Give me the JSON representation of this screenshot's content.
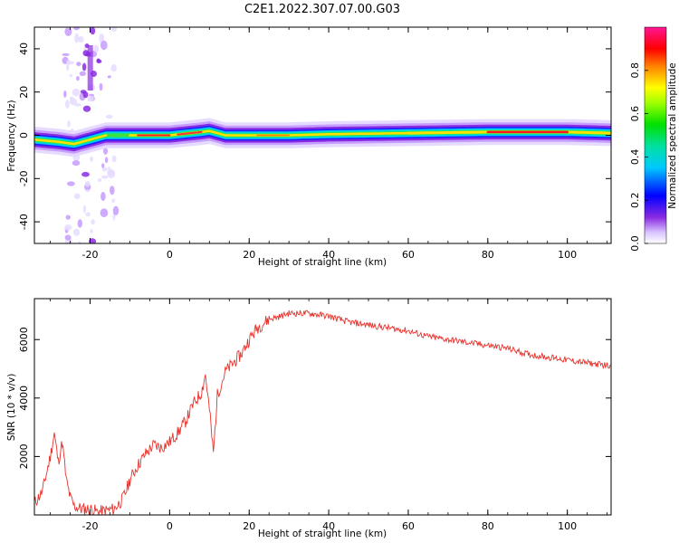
{
  "figure": {
    "title": "C2E1.2022.307.07.00.G03"
  },
  "chart_data": [
    {
      "type": "heatmap",
      "xlabel": "Height of straight line (km)",
      "ylabel": "Frequency (Hz)",
      "xlim": [
        -34,
        111
      ],
      "ylim": [
        -50,
        50
      ],
      "xticks": [
        -20,
        0,
        20,
        40,
        60,
        80,
        100
      ],
      "yticks": [
        -40,
        -20,
        0,
        20,
        40
      ],
      "colorbar": {
        "label": "Normalized spectral amplitude",
        "range": [
          0,
          1
        ],
        "ticks": [
          "0.0",
          "0.2",
          "0.4",
          "0.6",
          "0.8"
        ],
        "colormap": "rainbow (white-violet-blue-cyan-green-yellow-red-magenta)"
      },
      "ridge": {
        "description": "main spectral peak (red) at frequency vs height",
        "points": [
          [
            -34,
            -2
          ],
          [
            -28,
            -3
          ],
          [
            -24,
            -4
          ],
          [
            -20,
            -2
          ],
          [
            -16,
            0
          ],
          [
            -10,
            0
          ],
          [
            0,
            0
          ],
          [
            8,
            1.5
          ],
          [
            10,
            2
          ],
          [
            14,
            0
          ],
          [
            20,
            0
          ],
          [
            30,
            0
          ],
          [
            40,
            0.5
          ],
          [
            60,
            1
          ],
          [
            80,
            1.5
          ],
          [
            90,
            1.5
          ],
          [
            100,
            1.5
          ],
          [
            111,
            1
          ]
        ]
      },
      "features": [
        {
          "note": "broadband vertical spread",
          "x_range": [
            -22,
            -18
          ],
          "freq_range": [
            -50,
            50
          ]
        }
      ]
    },
    {
      "type": "line",
      "xlabel": "Height of straight line (km)",
      "ylabel": "SNR (10 * v/v)",
      "xlim": [
        -34,
        111
      ],
      "ylim": [
        0,
        7400
      ],
      "xticks": [
        -20,
        0,
        20,
        40,
        60,
        80,
        100
      ],
      "yticks": [
        2000,
        4000,
        6000
      ],
      "series": [
        {
          "color": "#e8322c",
          "x": [
            -34,
            -32,
            -30,
            -29,
            -28,
            -27,
            -26,
            -25,
            -24,
            -22,
            -20,
            -18,
            -16,
            -14,
            -12,
            -11,
            -10,
            -8,
            -6,
            -4,
            -2,
            0,
            2,
            4,
            6,
            8,
            9,
            10,
            11,
            12,
            14,
            16,
            18,
            20,
            22,
            25,
            28,
            30,
            35,
            40,
            45,
            50,
            55,
            60,
            65,
            70,
            75,
            80,
            85,
            90,
            95,
            100,
            105,
            111
          ],
          "y": [
            400,
            800,
            2000,
            2800,
            1800,
            2500,
            1200,
            600,
            300,
            200,
            200,
            100,
            150,
            200,
            500,
            800,
            1200,
            1700,
            2100,
            2400,
            2300,
            2500,
            2800,
            3200,
            3800,
            4200,
            4800,
            3600,
            2100,
            4100,
            4900,
            5200,
            5500,
            6000,
            6400,
            6700,
            6800,
            6900,
            6900,
            6800,
            6600,
            6500,
            6400,
            6300,
            6100,
            6000,
            5900,
            5800,
            5700,
            5500,
            5400,
            5300,
            5200,
            5100
          ]
        }
      ]
    }
  ]
}
